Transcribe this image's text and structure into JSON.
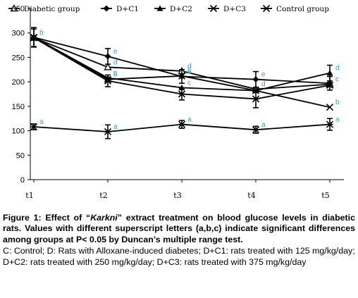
{
  "chart_data": {
    "type": "line",
    "categories": [
      "t1",
      "t2",
      "t3",
      "t4",
      "t5"
    ],
    "ylim": [
      0,
      350
    ],
    "yticks": [
      0,
      50,
      100,
      150,
      200,
      250,
      300,
      350
    ],
    "grid": false,
    "legend_position": "top",
    "series": [
      {
        "name": "Diabetic group",
        "marker": "triangle-open",
        "values": [
          290,
          230,
          222,
          185,
          195
        ],
        "errors": [
          18,
          0,
          0,
          0,
          0
        ],
        "letters": [
          "b",
          "d",
          "d",
          "d",
          "c"
        ]
      },
      {
        "name": "D+C1",
        "marker": "diamond",
        "values": [
          291,
          252,
          211,
          205,
          197
        ],
        "errors": [
          20,
          16,
          14,
          16,
          14
        ],
        "letters": [
          "",
          "e",
          "e",
          "e",
          ""
        ]
      },
      {
        "name": "D+C2",
        "marker": "triangle",
        "values": [
          291,
          208,
          188,
          182,
          218
        ],
        "errors": [
          0,
          0,
          0,
          0,
          16
        ],
        "letters": [
          "",
          "c",
          "c",
          "",
          "d"
        ]
      },
      {
        "name": "D+C3",
        "marker": "x",
        "values": [
          291,
          205,
          212,
          182,
          148
        ],
        "errors": [
          0,
          0,
          0,
          0,
          0
        ],
        "letters": [
          "",
          "b",
          "b",
          "",
          "b"
        ]
      },
      {
        "name": "Control group",
        "marker": "star",
        "values": [
          290,
          202,
          175,
          165,
          193
        ],
        "errors": [
          0,
          12,
          12,
          18,
          0
        ],
        "letters": [
          "",
          "",
          "",
          "",
          ""
        ]
      },
      {
        "name": "",
        "marker": "star",
        "values": [
          108,
          98,
          113,
          102,
          113
        ],
        "errors": [
          6,
          14,
          8,
          7,
          12
        ],
        "letters": [
          "a",
          "a",
          "a",
          "a",
          "a"
        ]
      }
    ]
  },
  "caption": {
    "bold_prefix": "Figure 1: Effect of “",
    "bold_italic": "Karkni",
    "bold_suffix": "” extract treatment on blood glucose levels in diabetic rats. Values with different superscript letters (a,b,c) indicate significant differences among groups at P< 0.05 by Duncan’s multiple range test.",
    "plain": "C: Control; D: Rats with Alloxane-induced diabetes; D+C1: rats treated with 125 mg/kg/day; D+C2: rats treated with 250 mg/kg/day; D+C3: rats treated with 375 mg/kg/day"
  },
  "colors": {
    "line": "#000000",
    "letters": "#29a3d6"
  }
}
